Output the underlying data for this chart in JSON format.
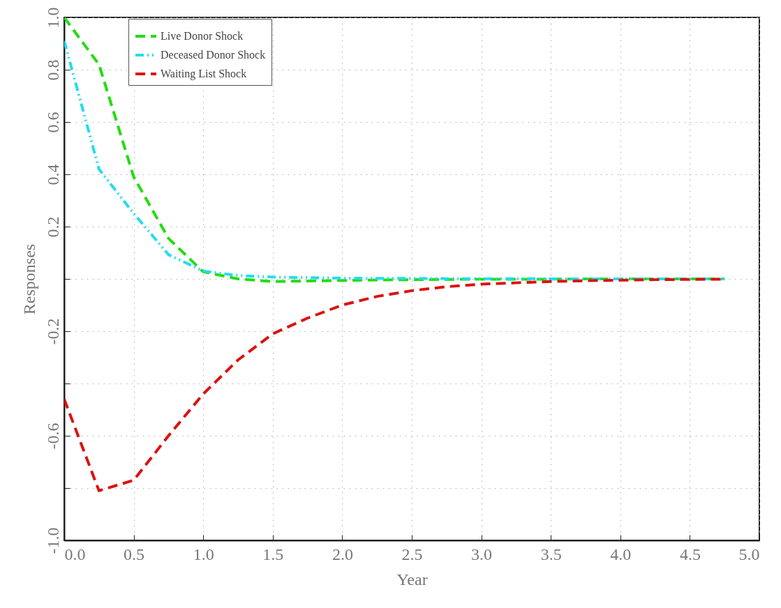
{
  "chart_data": {
    "type": "line",
    "xlabel": "Year",
    "ylabel": "Responses",
    "xlim": [
      0,
      5
    ],
    "ylim": [
      -1,
      1
    ],
    "xticks": [
      {
        "value": 0,
        "label": "0.0"
      },
      {
        "value": 0.5,
        "label": "0.5"
      },
      {
        "value": 1,
        "label": "1.0"
      },
      {
        "value": 1.5,
        "label": "1.5"
      },
      {
        "value": 2,
        "label": "2.0"
      },
      {
        "value": 2.5,
        "label": "2.5"
      },
      {
        "value": 3,
        "label": "3.0"
      },
      {
        "value": 3.5,
        "label": "3.5"
      },
      {
        "value": 4,
        "label": "4.0"
      },
      {
        "value": 4.5,
        "label": "4.5"
      },
      {
        "value": 5,
        "label": "5.0"
      }
    ],
    "yticks": [
      {
        "value": -1,
        "label": "-1.0"
      },
      {
        "value": -0.8,
        "label": null
      },
      {
        "value": -0.6,
        "label": "-0.6"
      },
      {
        "value": -0.4,
        "label": null
      },
      {
        "value": -0.2,
        "label": "-0.2"
      },
      {
        "value": 0,
        "label": null
      },
      {
        "value": 0.2,
        "label": "0.2"
      },
      {
        "value": 0.4,
        "label": "0.4"
      },
      {
        "value": 0.6,
        "label": "0.6"
      },
      {
        "value": 0.8,
        "label": "0.8"
      },
      {
        "value": 1,
        "label": "1.0"
      }
    ],
    "x": [
      0,
      0.25,
      0.5,
      0.75,
      1,
      1.25,
      1.5,
      1.75,
      2,
      2.25,
      2.5,
      2.75,
      3,
      3.25,
      3.5,
      3.75,
      4,
      4.25,
      4.5,
      4.75
    ],
    "grid": true,
    "legend": "top left",
    "marker": "none",
    "series": [
      {
        "name": "Live Donor Shock",
        "color": "#22dd11",
        "line_style": "dashed",
        "values": [
          1.0,
          0.82,
          0.39,
          0.155,
          0.027,
          0.0,
          -0.01,
          -0.008,
          -0.006,
          -0.004,
          -0.003,
          -0.002,
          -0.001,
          -0.001,
          -0.001,
          0,
          0,
          0,
          0,
          0
        ]
      },
      {
        "name": "Deceased Donor Shock",
        "color": "#22ddee",
        "line_style": "dotted",
        "values": [
          0.91,
          0.42,
          0.25,
          0.093,
          0.03,
          0.013,
          0.007,
          0.005,
          0.003,
          0.002,
          0.002,
          0.001,
          0.001,
          0.001,
          0,
          0,
          0,
          0,
          0,
          0
        ]
      },
      {
        "name": "Waiting List Shock",
        "color": "#dd1111",
        "line_style": "dashed",
        "values": [
          -0.46,
          -0.81,
          -0.77,
          -0.6,
          -0.44,
          -0.31,
          -0.21,
          -0.15,
          -0.1,
          -0.067,
          -0.045,
          -0.03,
          -0.02,
          -0.015,
          -0.01,
          -0.007,
          -0.005,
          -0.003,
          -0.002,
          -0.001
        ]
      }
    ]
  }
}
